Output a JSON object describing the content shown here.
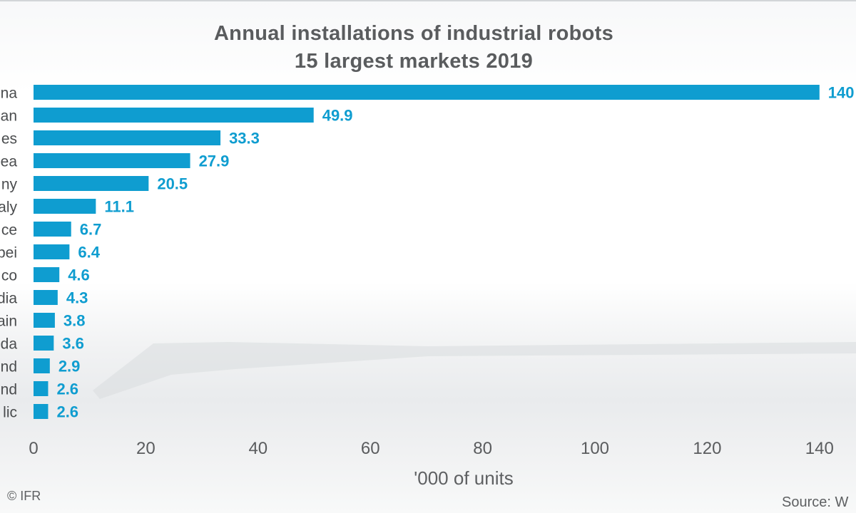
{
  "chart_data": {
    "type": "bar",
    "orientation": "horizontal",
    "title": [
      "Annual installations of industrial robots",
      "15 largest markets 2019"
    ],
    "xlabel": "'000 of units",
    "xlim": [
      0,
      140
    ],
    "x_ticks": [
      0,
      20,
      40,
      60,
      80,
      100,
      120,
      140
    ],
    "grid": false,
    "bar_color": "#0f9dd0",
    "label_color": "#0f9dd0",
    "categories": [
      "na",
      "an",
      "es",
      "ea",
      "ny",
      "aly",
      "ce",
      "bei",
      "co",
      "dia",
      "ain",
      "da",
      "nd",
      "nd",
      "lic"
    ],
    "values": [
      140,
      49.9,
      33.3,
      27.9,
      20.5,
      11.1,
      6.7,
      6.4,
      4.6,
      4.3,
      3.8,
      3.6,
      2.9,
      2.6,
      2.6
    ],
    "value_labels": [
      "140",
      "49.9",
      "33.3",
      "27.9",
      "20.5",
      "11.1",
      "6.7",
      "6.4",
      "4.6",
      "4.3",
      "3.8",
      "3.6",
      "2.9",
      "2.6",
      "2.6"
    ]
  },
  "footer": {
    "copyright": "© IFR",
    "source": "Source: W"
  }
}
